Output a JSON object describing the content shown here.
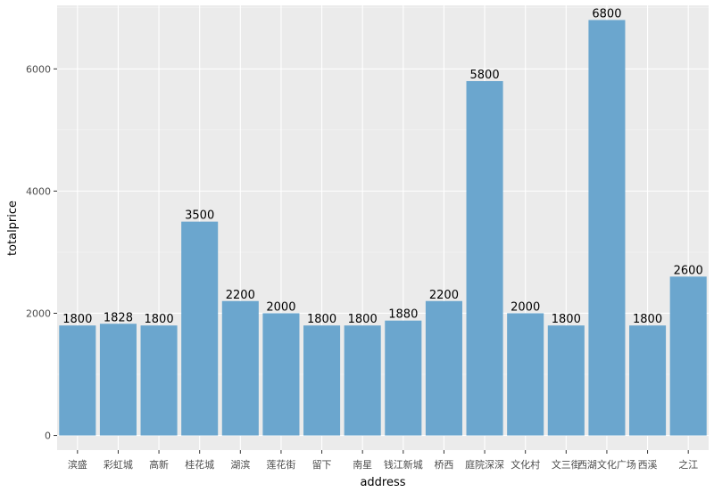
{
  "chart_data": {
    "type": "bar",
    "xlabel": "address",
    "ylabel": "totalprice",
    "categories": [
      "滨盛",
      "彩虹城",
      "高新",
      "桂花城",
      "湖滨",
      "莲花街",
      "留下",
      "南星",
      "钱江新城",
      "桥西",
      "庭院深深",
      "文化村",
      "文三街",
      "西湖文化广场",
      "西溪",
      "之江"
    ],
    "values": [
      1800,
      1828,
      1800,
      3500,
      2200,
      2000,
      1800,
      1800,
      1880,
      2200,
      5800,
      2000,
      1800,
      6800,
      1800,
      2600
    ],
    "y_ticks": [
      0,
      2000,
      4000,
      6000
    ],
    "ylim": [
      -240,
      7040
    ],
    "grid": true,
    "legend": "none",
    "colors": {
      "bar": "#6BA6CE",
      "panel_background": "#EBEBEB",
      "grid_major": "#FFFFFF",
      "grid_minor": "#F5F5F5"
    }
  }
}
